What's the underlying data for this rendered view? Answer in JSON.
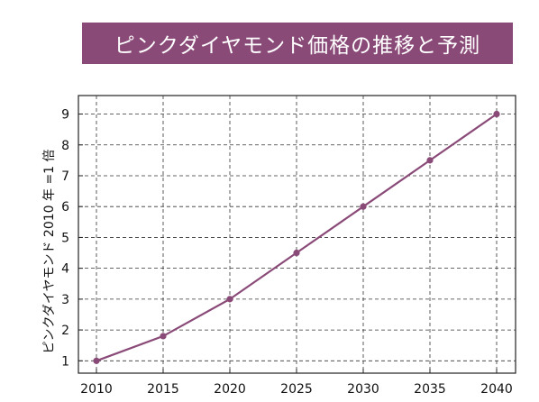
{
  "chart_data": {
    "type": "line",
    "title": "ピンクダイヤモンド価格の推移と予測",
    "ylabel": "ピンクダイヤモンド 2010 年 =1 倍",
    "xlabel": "",
    "x": [
      2010,
      2015,
      2020,
      2025,
      2030,
      2035,
      2040
    ],
    "series": [
      {
        "values": [
          1,
          1.8,
          3,
          4.5,
          6,
          7.5,
          9
        ]
      }
    ],
    "xlim": [
      2010,
      2040
    ],
    "ylim": [
      0.6,
      9.6
    ],
    "xticks": [
      2010,
      2015,
      2020,
      2025,
      2030,
      2035,
      2040
    ],
    "yticks": [
      1,
      2,
      3,
      4,
      5,
      6,
      7,
      8,
      9
    ],
    "grid": true,
    "line_color": "#8a4a78",
    "title_bg": "#8a4a78"
  }
}
